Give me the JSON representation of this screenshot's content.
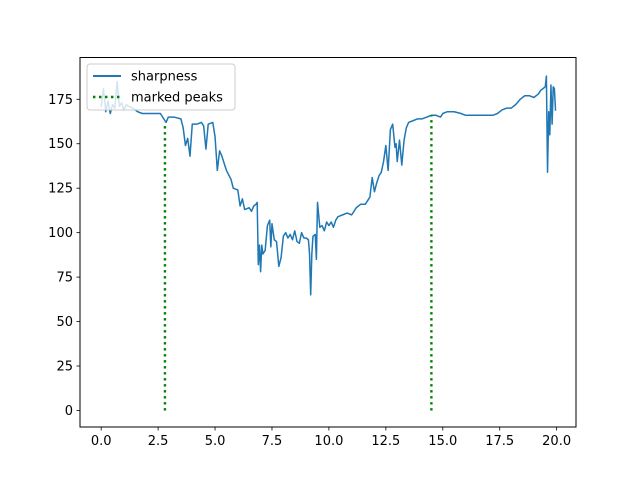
{
  "chart_data": {
    "type": "line",
    "title": "",
    "xlabel": "",
    "ylabel": "",
    "xlim": [
      -0.93,
      20.85
    ],
    "ylim": [
      -9.3,
      198.5
    ],
    "xticks": [
      0.0,
      2.5,
      5.0,
      7.5,
      10.0,
      12.5,
      15.0,
      17.5,
      20.0
    ],
    "xtick_labels": [
      "0.0",
      "2.5",
      "5.0",
      "7.5",
      "10.0",
      "12.5",
      "15.0",
      "17.5",
      "20.0"
    ],
    "yticks": [
      0,
      25,
      50,
      75,
      100,
      125,
      150,
      175
    ],
    "ytick_labels": [
      "0",
      "25",
      "50",
      "75",
      "100",
      "125",
      "150",
      "175"
    ],
    "grid": false,
    "legend_position": "upper-left",
    "legend": [
      {
        "label": "sharpness",
        "style": "solid",
        "color": "#1f77b4"
      },
      {
        "label": "marked peaks",
        "style": "dotted",
        "color": "#008000"
      }
    ],
    "series": [
      {
        "name": "sharpness",
        "style": "solid",
        "color": "#1f77b4",
        "points": [
          [
            0.0,
            171
          ],
          [
            0.1,
            181
          ],
          [
            0.2,
            168
          ],
          [
            0.3,
            174
          ],
          [
            0.4,
            167
          ],
          [
            0.5,
            172
          ],
          [
            0.6,
            170
          ],
          [
            0.7,
            185
          ],
          [
            0.8,
            171
          ],
          [
            0.9,
            173
          ],
          [
            1.0,
            169
          ],
          [
            1.1,
            172
          ],
          [
            1.2,
            171
          ],
          [
            1.4,
            170
          ],
          [
            1.6,
            168
          ],
          [
            1.8,
            167
          ],
          [
            2.0,
            167
          ],
          [
            2.2,
            167
          ],
          [
            2.4,
            167
          ],
          [
            2.6,
            167
          ],
          [
            2.75,
            164
          ],
          [
            2.85,
            162
          ],
          [
            2.95,
            165
          ],
          [
            3.2,
            165
          ],
          [
            3.5,
            164
          ],
          [
            3.6,
            159
          ],
          [
            3.7,
            149
          ],
          [
            3.8,
            153
          ],
          [
            3.9,
            143
          ],
          [
            4.0,
            161
          ],
          [
            4.2,
            161
          ],
          [
            4.4,
            162
          ],
          [
            4.5,
            160
          ],
          [
            4.6,
            147
          ],
          [
            4.7,
            161
          ],
          [
            4.9,
            162
          ],
          [
            5.0,
            154
          ],
          [
            5.1,
            135
          ],
          [
            5.2,
            146
          ],
          [
            5.3,
            143
          ],
          [
            5.5,
            135
          ],
          [
            5.7,
            130
          ],
          [
            5.8,
            125
          ],
          [
            6.0,
            124
          ],
          [
            6.1,
            115
          ],
          [
            6.2,
            119
          ],
          [
            6.3,
            113
          ],
          [
            6.5,
            114
          ],
          [
            6.6,
            112
          ],
          [
            6.7,
            115
          ],
          [
            6.8,
            116
          ],
          [
            6.85,
            117
          ],
          [
            6.9,
            82
          ],
          [
            6.95,
            93
          ],
          [
            7.0,
            78
          ],
          [
            7.05,
            93
          ],
          [
            7.1,
            88
          ],
          [
            7.2,
            90
          ],
          [
            7.3,
            104
          ],
          [
            7.4,
            107
          ],
          [
            7.45,
            92
          ],
          [
            7.5,
            105
          ],
          [
            7.6,
            96
          ],
          [
            7.7,
            95
          ],
          [
            7.8,
            81
          ],
          [
            7.9,
            86
          ],
          [
            8.0,
            98
          ],
          [
            8.1,
            100
          ],
          [
            8.2,
            97
          ],
          [
            8.3,
            99
          ],
          [
            8.4,
            96
          ],
          [
            8.5,
            101
          ],
          [
            8.6,
            95
          ],
          [
            8.7,
            94
          ],
          [
            8.8,
            100
          ],
          [
            8.9,
            97
          ],
          [
            9.0,
            97
          ],
          [
            9.1,
            96
          ],
          [
            9.15,
            88
          ],
          [
            9.2,
            65
          ],
          [
            9.25,
            88
          ],
          [
            9.3,
            98
          ],
          [
            9.4,
            99
          ],
          [
            9.45,
            85
          ],
          [
            9.5,
            117
          ],
          [
            9.6,
            103
          ],
          [
            9.7,
            104
          ],
          [
            9.8,
            101
          ],
          [
            9.9,
            106
          ],
          [
            10.0,
            104
          ],
          [
            10.1,
            106
          ],
          [
            10.2,
            103
          ],
          [
            10.3,
            107
          ],
          [
            10.4,
            109
          ],
          [
            10.6,
            110
          ],
          [
            10.8,
            111
          ],
          [
            11.0,
            110
          ],
          [
            11.2,
            114
          ],
          [
            11.4,
            116
          ],
          [
            11.6,
            116
          ],
          [
            11.8,
            120
          ],
          [
            11.9,
            131
          ],
          [
            12.0,
            123
          ],
          [
            12.1,
            128
          ],
          [
            12.2,
            132
          ],
          [
            12.3,
            134
          ],
          [
            12.4,
            140
          ],
          [
            12.5,
            149
          ],
          [
            12.6,
            135
          ],
          [
            12.7,
            158
          ],
          [
            12.8,
            161
          ],
          [
            12.9,
            148
          ],
          [
            12.95,
            150
          ],
          [
            13.0,
            140
          ],
          [
            13.1,
            152
          ],
          [
            13.2,
            138
          ],
          [
            13.3,
            152
          ],
          [
            13.4,
            159
          ],
          [
            13.5,
            162
          ],
          [
            13.7,
            163
          ],
          [
            13.9,
            164
          ],
          [
            14.1,
            164
          ],
          [
            14.3,
            165
          ],
          [
            14.5,
            166
          ],
          [
            14.7,
            166
          ],
          [
            14.9,
            165
          ],
          [
            15.0,
            167
          ],
          [
            15.2,
            168
          ],
          [
            15.5,
            168
          ],
          [
            15.8,
            167
          ],
          [
            16.0,
            166
          ],
          [
            16.2,
            166
          ],
          [
            16.5,
            166
          ],
          [
            16.8,
            166
          ],
          [
            17.0,
            166
          ],
          [
            17.2,
            166
          ],
          [
            17.4,
            167
          ],
          [
            17.6,
            169
          ],
          [
            17.8,
            170
          ],
          [
            18.0,
            170
          ],
          [
            18.2,
            172
          ],
          [
            18.4,
            175
          ],
          [
            18.6,
            177
          ],
          [
            18.8,
            177
          ],
          [
            19.0,
            176
          ],
          [
            19.2,
            178
          ],
          [
            19.3,
            180
          ],
          [
            19.4,
            181
          ],
          [
            19.5,
            182
          ],
          [
            19.55,
            188
          ],
          [
            19.6,
            134
          ],
          [
            19.65,
            168
          ],
          [
            19.7,
            155
          ],
          [
            19.75,
            183
          ],
          [
            19.8,
            161
          ],
          [
            19.85,
            182
          ],
          [
            19.9,
            181
          ],
          [
            19.95,
            169
          ]
        ]
      },
      {
        "name": "marked peaks",
        "style": "dotted",
        "color": "#008000",
        "segments": [
          {
            "x": 2.8,
            "y_from": 0,
            "y_to": 162
          },
          {
            "x": 14.5,
            "y_from": 0,
            "y_to": 166
          }
        ]
      }
    ]
  }
}
